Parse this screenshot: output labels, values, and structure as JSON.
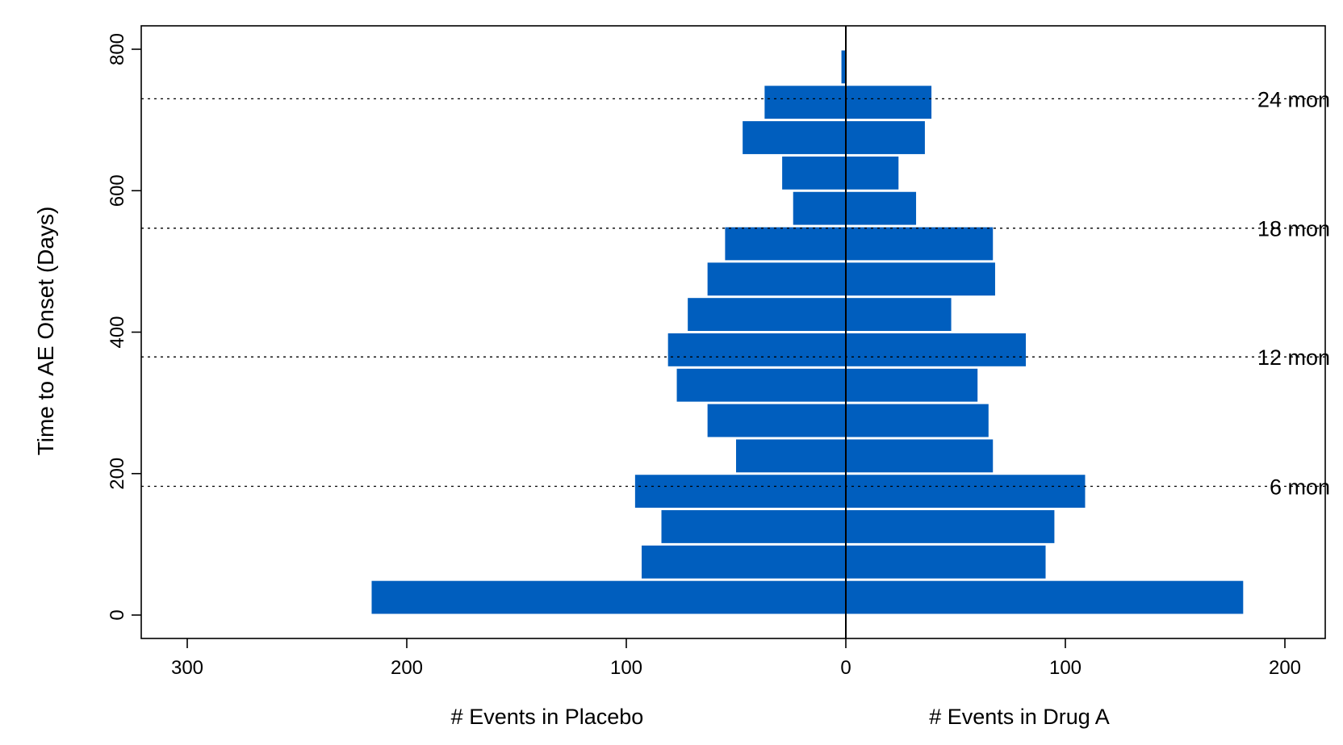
{
  "chart_data": {
    "type": "bar",
    "orientation": "horizontal-back-to-back",
    "ylabel": "Time to AE Onset (Days)",
    "left_xlabel": "# Events in Placebo",
    "right_xlabel": "# Events in Drug A",
    "xlim_left": [
      320,
      0
    ],
    "xlim_right": [
      0,
      220
    ],
    "ylim": [
      -35,
      850
    ],
    "x_ticks_left": [
      "300",
      "200",
      "100",
      "0"
    ],
    "x_ticks_right": [
      "100",
      "200"
    ],
    "y_ticks": [
      "0",
      "200",
      "400",
      "600",
      "800"
    ],
    "bin_width": 50,
    "bins": [
      {
        "start": 0,
        "end": 50,
        "placebo": 216,
        "drug_a": 181
      },
      {
        "start": 50,
        "end": 100,
        "placebo": 93,
        "drug_a": 91
      },
      {
        "start": 100,
        "end": 150,
        "placebo": 84,
        "drug_a": 95
      },
      {
        "start": 150,
        "end": 200,
        "placebo": 96,
        "drug_a": 109
      },
      {
        "start": 200,
        "end": 250,
        "placebo": 50,
        "drug_a": 67
      },
      {
        "start": 250,
        "end": 300,
        "placebo": 63,
        "drug_a": 65
      },
      {
        "start": 300,
        "end": 350,
        "placebo": 77,
        "drug_a": 60
      },
      {
        "start": 350,
        "end": 400,
        "placebo": 81,
        "drug_a": 82
      },
      {
        "start": 400,
        "end": 450,
        "placebo": 72,
        "drug_a": 48
      },
      {
        "start": 450,
        "end": 500,
        "placebo": 63,
        "drug_a": 68
      },
      {
        "start": 500,
        "end": 550,
        "placebo": 55,
        "drug_a": 67
      },
      {
        "start": 550,
        "end": 600,
        "placebo": 24,
        "drug_a": 32
      },
      {
        "start": 600,
        "end": 650,
        "placebo": 29,
        "drug_a": 24
      },
      {
        "start": 650,
        "end": 700,
        "placebo": 47,
        "drug_a": 36
      },
      {
        "start": 700,
        "end": 750,
        "placebo": 37,
        "drug_a": 39
      },
      {
        "start": 750,
        "end": 800,
        "placebo": 2,
        "drug_a": 0
      }
    ],
    "reference_lines": [
      {
        "y": 182,
        "label": "6 mon"
      },
      {
        "y": 365,
        "label": "12 mon"
      },
      {
        "y": 547,
        "label": "18 mon"
      },
      {
        "y": 730,
        "label": "24 mon"
      }
    ],
    "bar_color": "#005EBE",
    "grid": false
  }
}
